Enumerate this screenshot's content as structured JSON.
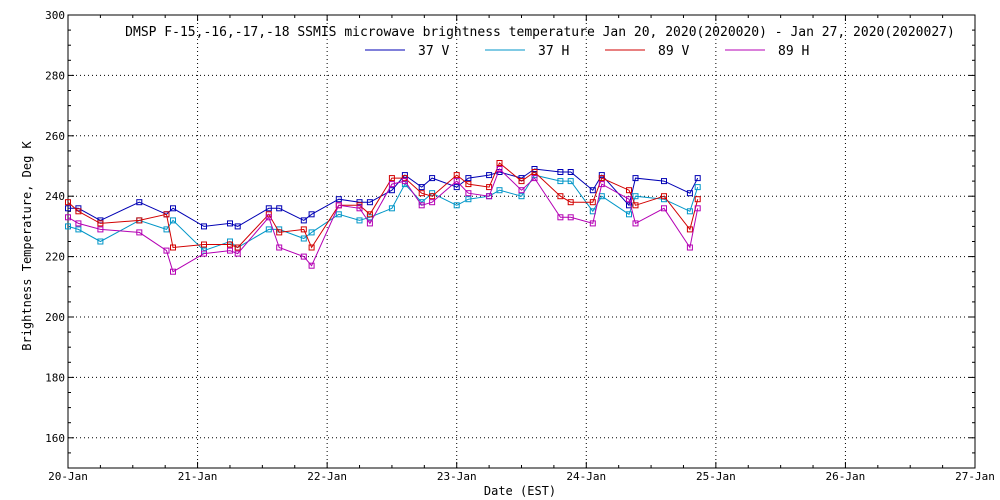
{
  "chart_data": {
    "type": "line",
    "title": "DMSP F-15,-16,-17,-18 SSMIS microwave brightness temperature Jan 20, 2020(2020020) - Jan 27, 2020(2020027)",
    "xlabel": "Date (EST)",
    "ylabel": "Brightness Temperature, Deg K",
    "xlim": [
      0,
      7
    ],
    "ylim": [
      150,
      300
    ],
    "x_ticks": [
      "20-Jan",
      "21-Jan",
      "22-Jan",
      "23-Jan",
      "24-Jan",
      "25-Jan",
      "26-Jan",
      "27-Jan"
    ],
    "y_ticks": [
      160,
      180,
      200,
      220,
      240,
      260,
      280,
      300
    ],
    "grid": true,
    "legend_position": "top",
    "x": [
      0.0,
      0.08,
      0.25,
      0.55,
      0.76,
      0.81,
      1.05,
      1.25,
      1.31,
      1.55,
      1.63,
      1.82,
      1.88,
      2.09,
      2.25,
      2.33,
      2.5,
      2.6,
      2.73,
      2.81,
      3.0,
      3.09,
      3.25,
      3.33,
      3.5,
      3.6,
      3.8,
      3.88,
      4.05,
      4.12,
      4.33,
      4.38,
      4.6,
      4.8,
      4.86
    ],
    "series": [
      {
        "name": "37 V",
        "color": "#0000b4",
        "values": [
          236,
          236,
          232,
          238,
          234,
          236,
          230,
          231,
          230,
          236,
          236,
          232,
          234,
          239,
          238,
          238,
          242,
          247,
          243,
          246,
          243,
          246,
          247,
          248,
          246,
          249,
          248,
          248,
          242,
          247,
          237,
          246,
          245,
          241,
          246
        ]
      },
      {
        "name": "37 H",
        "color": "#0096c8",
        "values": [
          230,
          229,
          225,
          232,
          229,
          232,
          222,
          225,
          223,
          229,
          229,
          226,
          228,
          234,
          232,
          233,
          236,
          244,
          238,
          241,
          237,
          239,
          240,
          242,
          240,
          247,
          245,
          245,
          235,
          240,
          234,
          240,
          239,
          235,
          243
        ]
      },
      {
        "name": "89 V",
        "color": "#d20000",
        "values": [
          238,
          235,
          231,
          232,
          234,
          223,
          224,
          224,
          223,
          234,
          228,
          229,
          223,
          237,
          237,
          234,
          246,
          246,
          241,
          240,
          247,
          244,
          243,
          251,
          245,
          248,
          240,
          238,
          238,
          246,
          242,
          237,
          240,
          229,
          239
        ]
      },
      {
        "name": "89 H",
        "color": "#b400b4",
        "values": [
          233,
          231,
          229,
          228,
          222,
          215,
          221,
          222,
          221,
          233,
          223,
          220,
          217,
          237,
          236,
          231,
          244,
          245,
          237,
          238,
          245,
          241,
          240,
          249,
          242,
          246,
          233,
          233,
          231,
          244,
          239,
          231,
          236,
          223,
          236
        ]
      }
    ]
  }
}
